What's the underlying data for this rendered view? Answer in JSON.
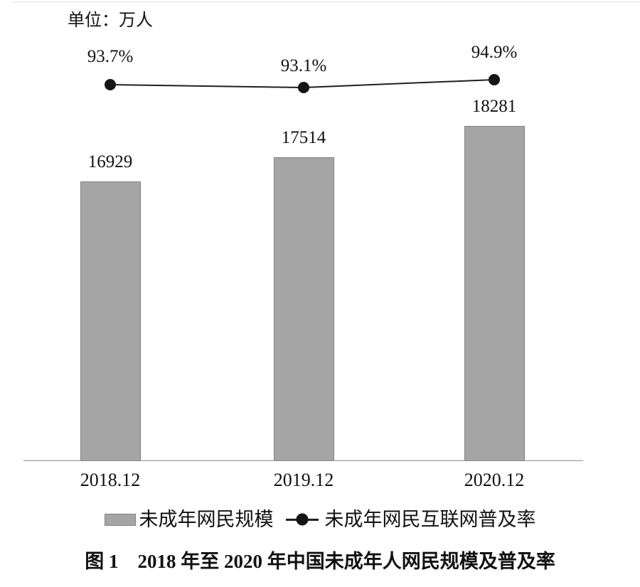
{
  "unit_label": "单位：万人",
  "chart_data": {
    "type": "bar",
    "subtype": "bar-line-combo",
    "categories": [
      "2018.12",
      "2019.12",
      "2020.12"
    ],
    "series": [
      {
        "name": "未成年网民规模",
        "type": "bar",
        "unit": "万人",
        "values": [
          16929,
          17514,
          18281
        ],
        "labels": [
          "16929",
          "17514",
          "18281"
        ]
      },
      {
        "name": "未成年网民互联网普及率",
        "type": "line",
        "unit": "%",
        "values": [
          93.7,
          93.1,
          94.9
        ],
        "labels": [
          "93.7%",
          "93.1%",
          "94.9%"
        ]
      }
    ],
    "title": "图 1　2018 年至 2020 年中国未成年人网民规模及普及率",
    "unit_note": "单位：万人",
    "legend_position": "bottom",
    "grid": false,
    "y_axis_visible": false,
    "x_axis_visible": true
  },
  "legend": {
    "bar_label": "未成年网民规模",
    "line_label": "未成年网民互联网普及率"
  },
  "caption": "图 1　2018 年至 2020 年中国未成年人网民规模及普及率",
  "colors": {
    "bar_fill": "#a5a5a5",
    "bar_border": "#828282",
    "line": "#231f20",
    "dot": "#151515",
    "axis": "#8f8f8f",
    "text": "#111111",
    "top_border": "#e4e4e4"
  }
}
